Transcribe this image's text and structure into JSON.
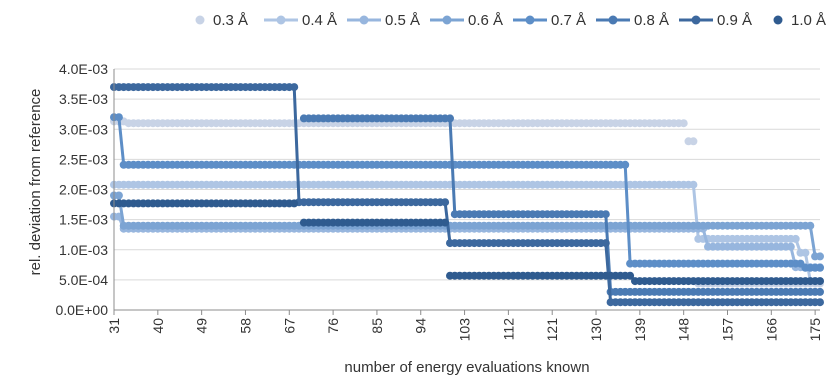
{
  "chart_data": {
    "type": "line",
    "title": "",
    "xlabel": "number of energy evaluations known",
    "ylabel": "rel. deviation from reference",
    "xlim": [
      31,
      176
    ],
    "ylim": [
      0,
      0.004
    ],
    "y_ticks": [
      0,
      0.0005,
      0.001,
      0.0015,
      0.002,
      0.0025,
      0.003,
      0.0035,
      0.004
    ],
    "y_tick_labels": [
      "0.0E+00",
      "5.0E-04",
      "1.0E-03",
      "1.5E-03",
      "2.0E-03",
      "2.5E-03",
      "3.0E-03",
      "3.5E-03",
      "4.0E-03"
    ],
    "x_tick_labels": [
      "31",
      "40",
      "49",
      "58",
      "67",
      "76",
      "85",
      "94",
      "103",
      "112",
      "121",
      "130",
      "139",
      "148",
      "157",
      "166",
      "175"
    ],
    "legend_position": "top",
    "grid": "horizontal",
    "series": [
      {
        "name": "0.3 Å",
        "color": "#c8d3e6",
        "style": "markers",
        "segments": [
          [
            31,
            33,
            0.00313
          ],
          [
            34,
            148,
            0.0031
          ],
          [
            149,
            150,
            0.0028
          ],
          [
            151,
            176,
            0.00044
          ]
        ]
      },
      {
        "name": "0.4 Å",
        "color": "#aec5e4",
        "style": "line+markers",
        "segments": [
          [
            31,
            150,
            0.00208
          ],
          [
            151,
            171,
            0.00118
          ],
          [
            172,
            173,
            0.00095
          ],
          [
            174,
            176,
            0.00048
          ]
        ]
      },
      {
        "name": "0.5 Å",
        "color": "#97b6de",
        "style": "line+markers",
        "segments": [
          [
            31,
            32,
            0.00155
          ],
          [
            33,
            152,
            0.00135
          ],
          [
            153,
            170,
            0.00105
          ],
          [
            171,
            176,
            0.00071
          ]
        ]
      },
      {
        "name": "0.6 Å",
        "color": "#7ca4d3",
        "style": "line+markers",
        "segments": [
          [
            31,
            32,
            0.0019
          ],
          [
            33,
            174,
            0.0014
          ],
          [
            175,
            176,
            0.00089
          ]
        ]
      },
      {
        "name": "0.7 Å",
        "color": "#5d8ec7",
        "style": "line+markers",
        "segments": [
          [
            31,
            32,
            0.0032
          ],
          [
            33,
            136,
            0.00241
          ],
          [
            137,
            172,
            0.00077
          ],
          [
            173,
            176,
            0.0007
          ]
        ]
      },
      {
        "name": "0.8 Å",
        "color": "#4a7ab3",
        "style": "line+markers",
        "segments": [
          [
            70,
            100,
            0.00318
          ],
          [
            101,
            132,
            0.00159
          ],
          [
            133,
            176,
            0.0003
          ]
        ]
      },
      {
        "name": "0.9 Å",
        "color": "#3c689e",
        "style": "line+markers",
        "segments": [
          [
            31,
            68,
            0.0037
          ],
          [
            69,
            99,
            0.00179
          ],
          [
            100,
            132,
            0.00111
          ],
          [
            133,
            176,
            0.00013
          ]
        ]
      },
      {
        "name": "1.0 Å",
        "color": "#2f5b8f",
        "style": "markers",
        "segments": [
          [
            31,
            33,
            0.00177
          ],
          [
            34,
            68,
            0.00177
          ],
          [
            70,
            99,
            0.00145
          ],
          [
            100,
            137,
            0.00057
          ],
          [
            138,
            176,
            0.00048
          ]
        ]
      }
    ]
  }
}
